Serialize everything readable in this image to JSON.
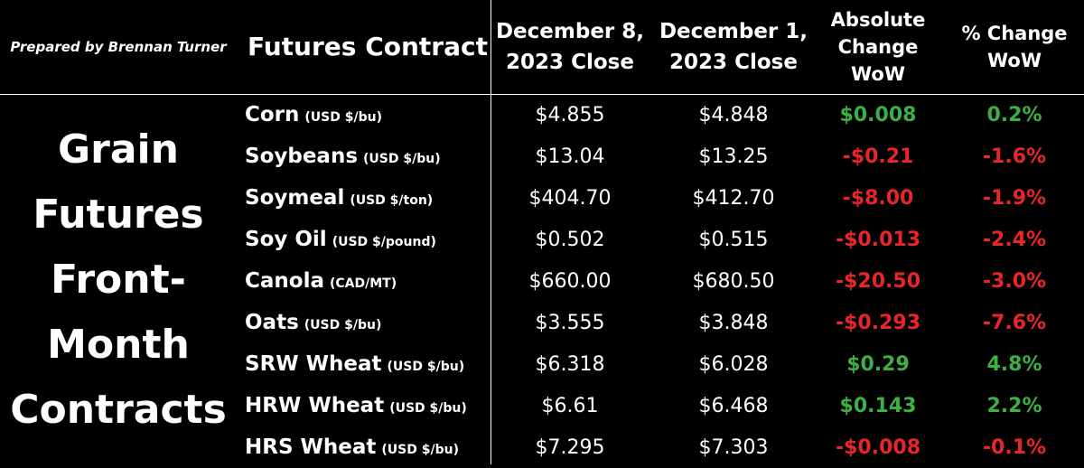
{
  "prepared_by": "Prepared by Brennan Turner",
  "headers": {
    "contract": "Futures Contract",
    "dec8": [
      "December 8,",
      "2023 Close"
    ],
    "dec1": [
      "December 1,",
      "2023 Close"
    ],
    "abs_change": [
      "Absolute",
      "Change",
      "WoW"
    ],
    "pct_change": [
      "% Change",
      "WoW"
    ]
  },
  "side_label": [
    "Grain",
    "Futures",
    "Front-",
    "Month",
    "Contracts"
  ],
  "colors": {
    "positive": "#3cb043",
    "negative": "#e8262a"
  },
  "rows": [
    {
      "name": "Corn",
      "unit": "(USD $/bu)",
      "dec8": "$4.855",
      "dec1": "$4.848",
      "abs": "$0.008",
      "pct": "0.2%",
      "dir": "pos"
    },
    {
      "name": "Soybeans",
      "unit": "(USD $/bu)",
      "dec8": "$13.04",
      "dec1": "$13.25",
      "abs": "-$0.21",
      "pct": "-1.6%",
      "dir": "neg"
    },
    {
      "name": "Soymeal",
      "unit": "(USD $/ton)",
      "dec8": "$404.70",
      "dec1": "$412.70",
      "abs": "-$8.00",
      "pct": "-1.9%",
      "dir": "neg"
    },
    {
      "name": "Soy Oil",
      "unit": "(USD $/pound)",
      "dec8": "$0.502",
      "dec1": "$0.515",
      "abs": "-$0.013",
      "pct": "-2.4%",
      "dir": "neg"
    },
    {
      "name": "Canola",
      "unit": "(CAD/MT)",
      "dec8": "$660.00",
      "dec1": "$680.50",
      "abs": "-$20.50",
      "pct": "-3.0%",
      "dir": "neg"
    },
    {
      "name": "Oats",
      "unit": "(USD $/bu)",
      "dec8": "$3.555",
      "dec1": "$3.848",
      "abs": "-$0.293",
      "pct": "-7.6%",
      "dir": "neg"
    },
    {
      "name": "SRW Wheat",
      "unit": "(USD $/bu)",
      "dec8": "$6.318",
      "dec1": "$6.028",
      "abs": "$0.29",
      "pct": "4.8%",
      "dir": "pos"
    },
    {
      "name": "HRW Wheat",
      "unit": "(USD $/bu)",
      "dec8": "$6.61",
      "dec1": "$6.468",
      "abs": "$0.143",
      "pct": "2.2%",
      "dir": "pos"
    },
    {
      "name": "HRS Wheat",
      "unit": "(USD $/bu)",
      "dec8": "$7.295",
      "dec1": "$7.303",
      "abs": "-$0.008",
      "pct": "-0.1%",
      "dir": "neg"
    }
  ]
}
